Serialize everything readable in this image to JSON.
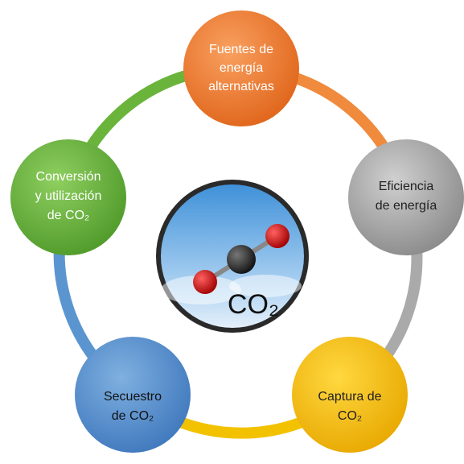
{
  "nodes": [
    {
      "lines": [
        "Fuentes de",
        "energía",
        "alternativas"
      ]
    },
    {
      "lines": [
        "Eficiencia",
        "de energía"
      ]
    },
    {
      "lines": [
        "Captura de",
        "CO₂"
      ]
    },
    {
      "lines": [
        "Secuestro",
        "de CO₂"
      ]
    },
    {
      "lines": [
        "Conversión",
        "y utilización",
        "de CO₂"
      ]
    }
  ],
  "center": {
    "label": "CO₂"
  }
}
